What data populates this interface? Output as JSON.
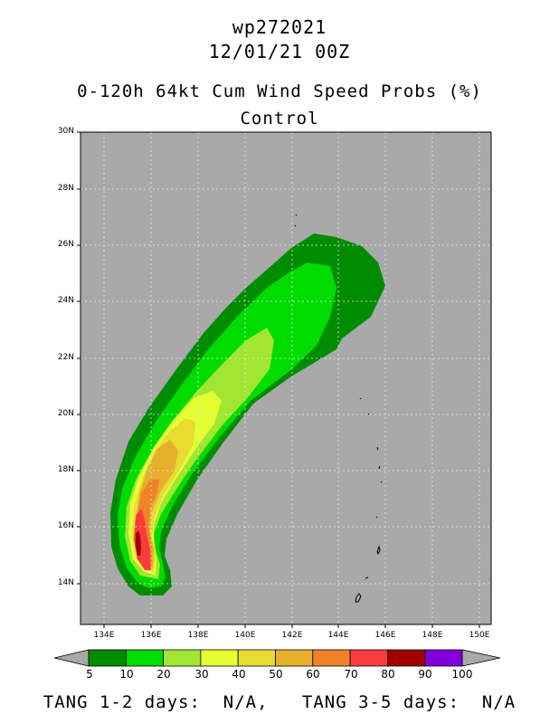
{
  "header": {
    "storm_id": "wp272021",
    "datetime": "12/01/21 00Z",
    "product": "0-120h 64kt Cum Wind Speed Probs (%)",
    "member": "Control"
  },
  "map": {
    "lat_labels": [
      "30N",
      "28N",
      "26N",
      "24N",
      "22N",
      "20N",
      "18N",
      "16N",
      "14N"
    ],
    "lon_labels": [
      "134E",
      "136E",
      "138E",
      "140E",
      "142E",
      "144E",
      "146E",
      "148E",
      "150E"
    ],
    "background_color": "#a9a9a9",
    "lat_range": [
      12.5,
      30
    ],
    "lon_range": [
      133,
      150.5
    ]
  },
  "colorbar": {
    "labels": [
      "5",
      "10",
      "20",
      "30",
      "40",
      "50",
      "60",
      "70",
      "80",
      "90",
      "100"
    ],
    "colors": [
      "#008c00",
      "#00dc00",
      "#a0e632",
      "#e6ff32",
      "#e6dc32",
      "#e6af2d",
      "#f08228",
      "#fa3c3c",
      "#a00000",
      "#8200dc"
    ]
  },
  "footer": {
    "text": "TANG 1-2 days:  N/A,   TANG 3-5 days:  N/A"
  }
}
